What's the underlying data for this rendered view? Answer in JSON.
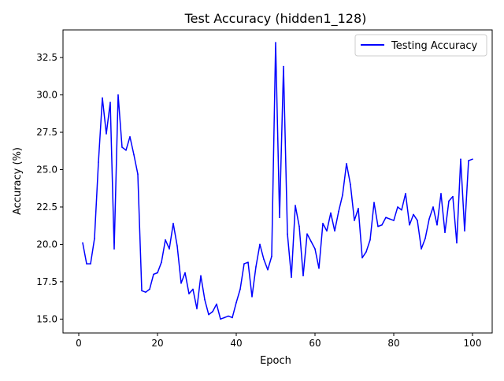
{
  "chart_data": {
    "type": "line",
    "title": "Test Accuracy (hidden1_128)",
    "xlabel": "Epoch",
    "ylabel": "Accuracy (%)",
    "xlim": [
      -4,
      105
    ],
    "ylim": [
      14.07,
      34.35
    ],
    "x_ticks": [
      0,
      20,
      40,
      60,
      80,
      100
    ],
    "y_ticks": [
      15.0,
      17.5,
      20.0,
      22.5,
      25.0,
      27.5,
      30.0,
      32.5
    ],
    "grid": false,
    "legend_position": "top-right",
    "series": [
      {
        "name": "Testing Accuracy",
        "color": "#0000ff",
        "x": [
          1,
          2,
          3,
          4,
          5,
          6,
          7,
          8,
          9,
          10,
          11,
          12,
          13,
          14,
          15,
          16,
          17,
          18,
          19,
          20,
          21,
          22,
          23,
          24,
          25,
          26,
          27,
          28,
          29,
          30,
          31,
          32,
          33,
          34,
          35,
          36,
          37,
          38,
          39,
          40,
          41,
          42,
          43,
          44,
          45,
          46,
          47,
          48,
          49,
          50,
          51,
          52,
          53,
          54,
          55,
          56,
          57,
          58,
          59,
          60,
          61,
          62,
          63,
          64,
          65,
          66,
          67,
          68,
          69,
          70,
          71,
          72,
          73,
          74,
          75,
          76,
          77,
          78,
          79,
          80,
          81,
          82,
          83,
          84,
          85,
          86,
          87,
          88,
          89,
          90,
          91,
          92,
          93,
          94,
          95,
          96,
          97,
          98,
          99,
          100
        ],
        "y": [
          20.1,
          18.7,
          18.7,
          20.4,
          25.5,
          29.8,
          27.4,
          29.5,
          19.7,
          30.0,
          26.5,
          26.3,
          27.2,
          26.0,
          24.7,
          16.9,
          16.8,
          17.0,
          18.0,
          18.1,
          18.8,
          20.3,
          19.7,
          21.4,
          19.9,
          17.4,
          18.1,
          16.7,
          17.0,
          15.7,
          17.9,
          16.3,
          15.3,
          15.5,
          16.0,
          15.0,
          15.1,
          15.2,
          15.1,
          16.1,
          17.0,
          18.7,
          18.8,
          16.5,
          18.5,
          20.0,
          19.0,
          18.3,
          19.2,
          33.5,
          21.8,
          31.9,
          20.7,
          17.8,
          22.6,
          21.2,
          17.9,
          20.7,
          20.2,
          19.7,
          18.4,
          21.4,
          20.9,
          22.1,
          20.9,
          22.2,
          23.3,
          25.4,
          24.0,
          21.6,
          22.4,
          19.1,
          19.5,
          20.3,
          22.8,
          21.2,
          21.3,
          21.8,
          21.7,
          21.6,
          22.5,
          22.3,
          23.4,
          21.3,
          22.0,
          21.6,
          19.7,
          20.4,
          21.7,
          22.5,
          21.3,
          23.4,
          20.8,
          22.9,
          23.2,
          20.1,
          25.7,
          20.9,
          25.6,
          25.7
        ]
      }
    ]
  }
}
